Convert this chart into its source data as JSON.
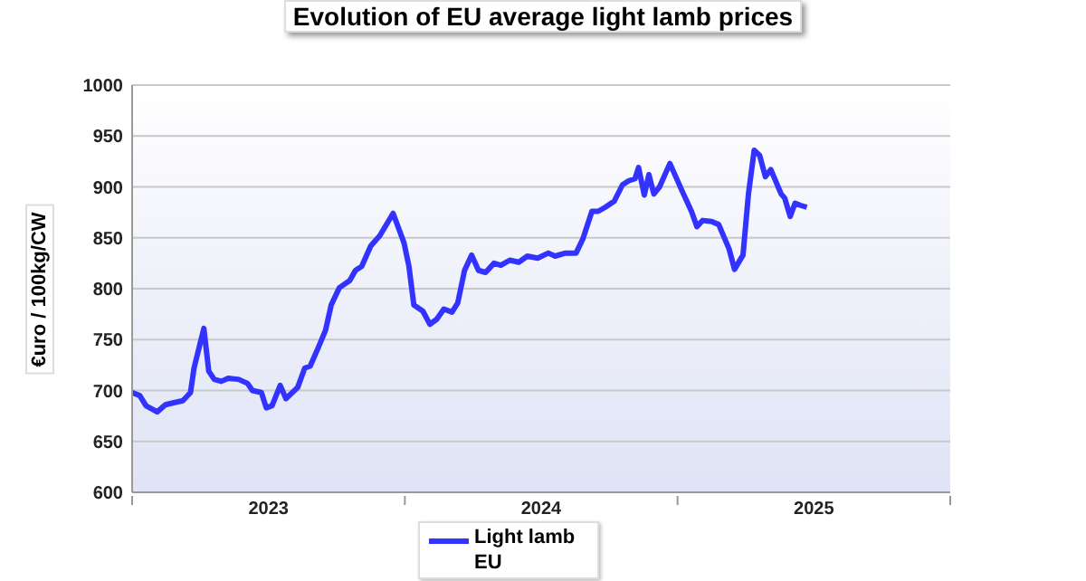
{
  "chart_data": {
    "type": "line",
    "title": "Evolution of EU average light lamb prices",
    "ylabel": "€uro / 100kg/CW",
    "xlim": [
      2023,
      2026
    ],
    "xticks": [
      {
        "value": 2023,
        "label": null
      },
      {
        "value": 2023.5,
        "label": "2023"
      },
      {
        "value": 2024,
        "label": null
      },
      {
        "value": 2024.5,
        "label": "2024"
      },
      {
        "value": 2025,
        "label": null
      },
      {
        "value": 2025.5,
        "label": "2025"
      },
      {
        "value": 2026,
        "label": null
      }
    ],
    "ylim": [
      600,
      1000
    ],
    "yticks": [
      600,
      650,
      700,
      750,
      800,
      850,
      900,
      950,
      1000
    ],
    "grid": "y",
    "legend": "bottom",
    "marker": "none",
    "line_style": "solid",
    "series": [
      {
        "name": "Light lamb EU",
        "color": "#3333ff",
        "x": [
          2023.0,
          2023.028,
          2023.051,
          2023.092,
          2023.122,
          2023.153,
          2023.186,
          2023.214,
          2023.227,
          2023.263,
          2023.281,
          2023.301,
          2023.327,
          2023.352,
          2023.39,
          2023.423,
          2023.441,
          2023.474,
          2023.492,
          2023.513,
          2023.543,
          2023.564,
          2023.607,
          2023.633,
          2023.653,
          2023.684,
          2023.709,
          2023.73,
          2023.76,
          2023.798,
          2023.819,
          2023.842,
          2023.875,
          2023.908,
          2023.957,
          2023.997,
          2024.015,
          2024.033,
          2024.066,
          2024.092,
          2024.117,
          2024.143,
          2024.173,
          2024.194,
          2024.219,
          2024.245,
          2024.27,
          2024.296,
          2024.327,
          2024.352,
          2024.385,
          2024.418,
          2024.449,
          2024.487,
          2024.526,
          2024.551,
          2024.589,
          2024.628,
          2024.653,
          2024.686,
          2024.709,
          2024.735,
          2024.768,
          2024.798,
          2024.821,
          2024.844,
          2024.857,
          2024.878,
          2024.895,
          2024.913,
          2024.934,
          2024.972,
          2025.015,
          2025.051,
          2025.071,
          2025.092,
          2025.125,
          2025.151,
          2025.189,
          2025.209,
          2025.24,
          2025.26,
          2025.281,
          2025.301,
          2025.322,
          2025.342,
          2025.38,
          2025.393,
          2025.413,
          2025.431,
          2025.449,
          2025.474
        ],
        "values": [
          698,
          695,
          685,
          679,
          686,
          688,
          690,
          698,
          722,
          761,
          719,
          711,
          709,
          712,
          711,
          707,
          700,
          698,
          683,
          685,
          705,
          692,
          703,
          722,
          724,
          743,
          759,
          784,
          801,
          808,
          818,
          822,
          842,
          852,
          874,
          845,
          822,
          784,
          778,
          765,
          770,
          780,
          777,
          786,
          818,
          833,
          818,
          816,
          825,
          823,
          828,
          826,
          832,
          830,
          835,
          832,
          835,
          835,
          849,
          876,
          876,
          880,
          886,
          902,
          906,
          908,
          919,
          892,
          912,
          893,
          900,
          923,
          897,
          876,
          861,
          867,
          866,
          863,
          839,
          819,
          833,
          893,
          936,
          931,
          910,
          917,
          893,
          889,
          871,
          884,
          882,
          880
        ]
      }
    ]
  }
}
